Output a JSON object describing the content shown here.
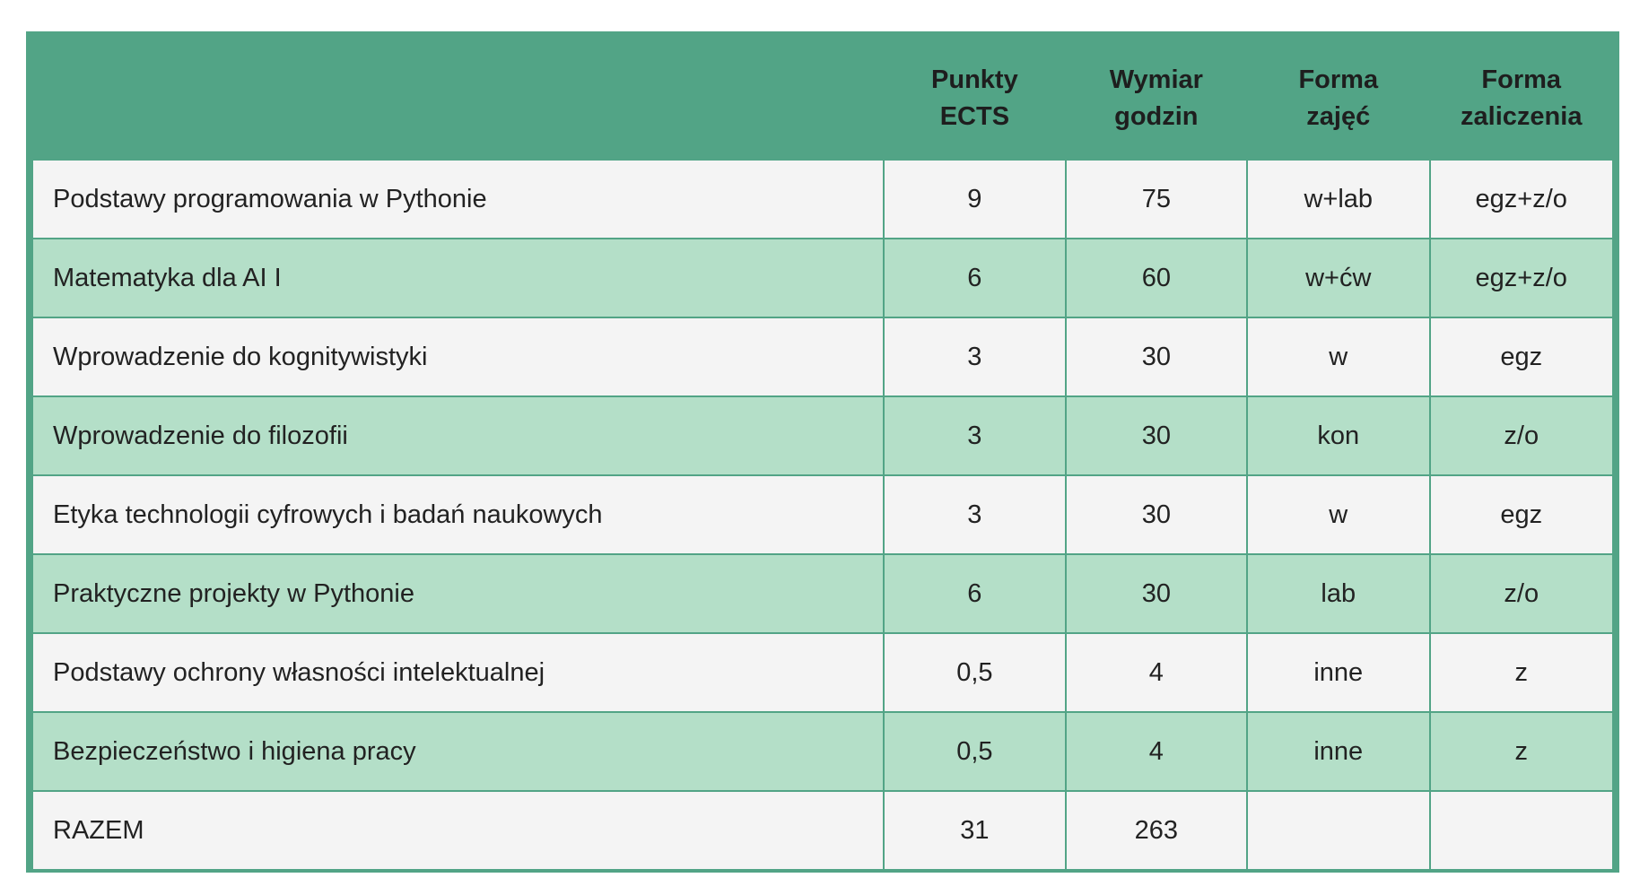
{
  "table": {
    "headers": [
      {
        "line1": "",
        "line2": ""
      },
      {
        "line1": "Punkty",
        "line2": "ECTS"
      },
      {
        "line1": "Wymiar",
        "line2": "godzin"
      },
      {
        "line1": "Forma",
        "line2": "zajęć"
      },
      {
        "line1": "Forma",
        "line2": "zaliczenia"
      }
    ],
    "rows": [
      {
        "name": "Podstawy programowania w Pythonie",
        "ects": "9",
        "hours": "75",
        "form": "w+lab",
        "credit": "egz+z/o"
      },
      {
        "name": "Matematyka dla AI I",
        "ects": "6",
        "hours": "60",
        "form": "w+ćw",
        "credit": "egz+z/o"
      },
      {
        "name": "Wprowadzenie do kognitywistyki",
        "ects": "3",
        "hours": "30",
        "form": "w",
        "credit": "egz"
      },
      {
        "name": "Wprowadzenie do filozofii",
        "ects": "3",
        "hours": "30",
        "form": "kon",
        "credit": "z/o"
      },
      {
        "name": "Etyka technologii cyfrowych i badań naukowych",
        "ects": "3",
        "hours": "30",
        "form": "w",
        "credit": "egz"
      },
      {
        "name": "Praktyczne projekty w Pythonie",
        "ects": "6",
        "hours": "30",
        "form": "lab",
        "credit": "z/o"
      },
      {
        "name": "Podstawy ochrony własności intelektualnej",
        "ects": "0,5",
        "hours": "4",
        "form": "inne",
        "credit": "z"
      },
      {
        "name": "Bezpieczeństwo i higiena pracy",
        "ects": "0,5",
        "hours": "4",
        "form": "inne",
        "credit": "z"
      },
      {
        "name": "RAZEM",
        "ects": "31",
        "hours": "263",
        "form": "",
        "credit": ""
      }
    ]
  },
  "colors": {
    "header_and_border": "#52a486",
    "row_light": "#f4f4f4",
    "row_green": "#b4dfc8"
  }
}
